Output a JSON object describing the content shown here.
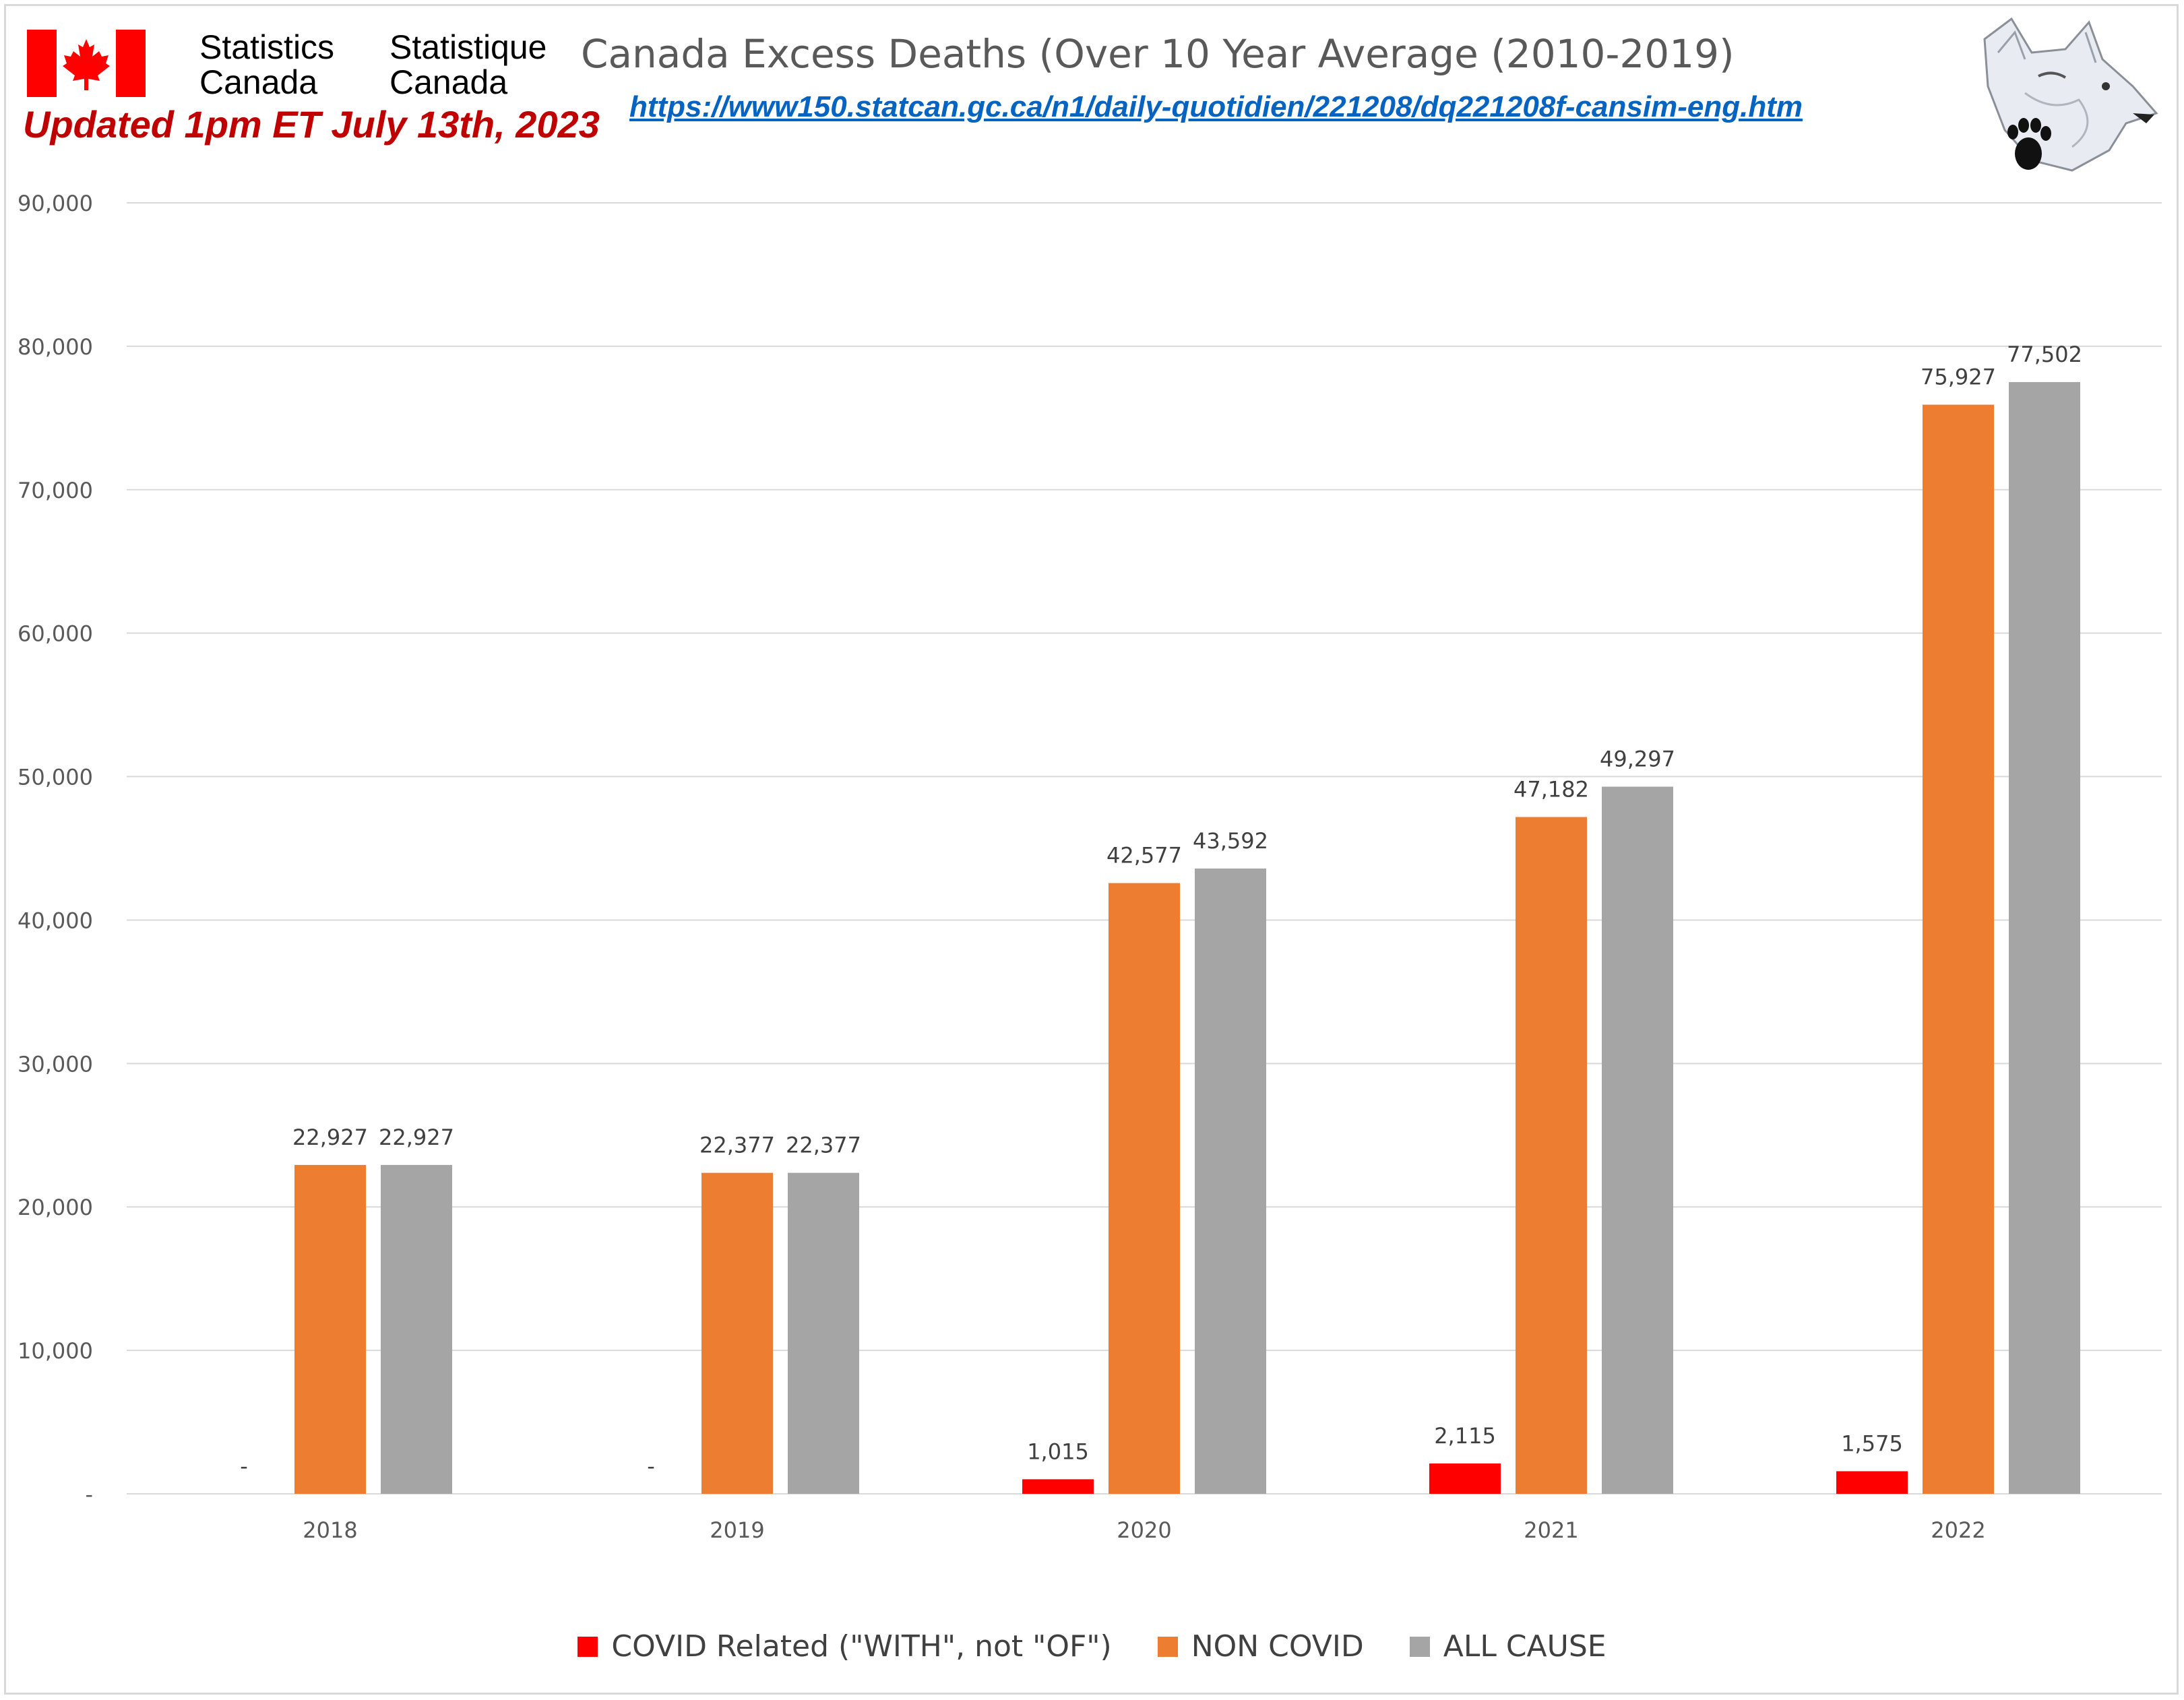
{
  "header": {
    "org_en_line1": "Statistics",
    "org_en_line2": "Canada",
    "org_fr_line1": "Statistique",
    "org_fr_line2": "Canada",
    "updated": "Updated 1pm ET July 13th, 2023",
    "link": "https://www150.statcan.gc.ca/n1/daily-quotidien/221208/dq221208f-cansim-eng.htm",
    "flag_icon": "canada-flag-icon",
    "logo_icon": "wolf-paw-logo-icon"
  },
  "colors": {
    "covid": "#ff0000",
    "non_covid": "#ed7d31",
    "all_cause": "#a5a5a5",
    "grid": "#d9d9d9",
    "axis_text": "#595959",
    "label_text": "#404040"
  },
  "chart_data": {
    "type": "bar",
    "title": "Canada Excess Deaths (Over 10 Year Average (2010-2019)",
    "categories": [
      "2018",
      "2019",
      "2020",
      "2021",
      "2022"
    ],
    "series": [
      {
        "name": "COVID Related (\"WITH\", not \"OF\")",
        "values": [
          0,
          0,
          1015,
          2115,
          1575
        ],
        "labels": [
          "-",
          "-",
          "1,015",
          "2,115",
          "1,575"
        ]
      },
      {
        "name": "NON COVID",
        "values": [
          22927,
          22377,
          42577,
          47182,
          75927
        ],
        "labels": [
          "22,927",
          "22,377",
          "42,577",
          "47,182",
          "75,927"
        ]
      },
      {
        "name": "ALL CAUSE",
        "values": [
          22927,
          22377,
          43592,
          49297,
          77502
        ],
        "labels": [
          "22,927",
          "22,377",
          "43,592",
          "49,297",
          "77,502"
        ]
      }
    ],
    "ylim": [
      0,
      90000
    ],
    "yticks": [
      0,
      10000,
      20000,
      30000,
      40000,
      50000,
      60000,
      70000,
      80000,
      90000
    ],
    "ytick_labels": [
      "-",
      "10,000",
      "20,000",
      "30,000",
      "40,000",
      "50,000",
      "60,000",
      "70,000",
      "80,000",
      "90,000"
    ],
    "xlabel": "",
    "ylabel": "",
    "grid": true,
    "legend_position": "bottom"
  }
}
